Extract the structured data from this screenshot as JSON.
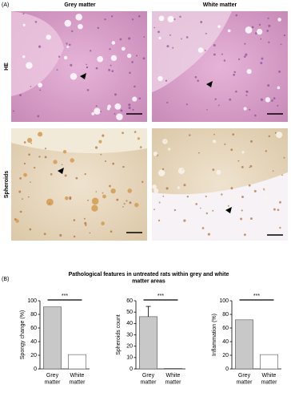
{
  "figure": {
    "panel_a_label": "(A)",
    "columns": [
      "Grey matter",
      "White matter"
    ],
    "rows": [
      "HE",
      "Spheroids"
    ],
    "panel_b_label": "(B)",
    "panel_b_title": "Pathological features in untreated rats within grey and white matter areas"
  },
  "chart_data": [
    {
      "type": "bar",
      "ylabel": "Spongy change (%)",
      "categories": [
        "Grey matter",
        "White matter"
      ],
      "values": [
        91,
        21
      ],
      "colors": [
        "#c8c8c8",
        "#ffffff"
      ],
      "ylim": [
        0,
        100
      ],
      "yticks": [
        0,
        20,
        40,
        60,
        80,
        100
      ],
      "annotation": "***"
    },
    {
      "type": "bar",
      "ylabel": "Spheroids count",
      "categories": [
        "Grey matter",
        "White matter"
      ],
      "values": [
        46,
        0.5
      ],
      "errors": [
        9,
        null
      ],
      "colors": [
        "#c8c8c8",
        "#ffffff"
      ],
      "ylim": [
        0,
        60
      ],
      "yticks": [
        0,
        10,
        20,
        30,
        40,
        50,
        60
      ],
      "annotation": "***"
    },
    {
      "type": "bar",
      "ylabel": "Inflammation (%)",
      "categories": [
        "Grey matter",
        "White matter"
      ],
      "values": [
        72,
        21
      ],
      "colors": [
        "#c8c8c8",
        "#ffffff"
      ],
      "ylim": [
        0,
        100
      ],
      "yticks": [
        0,
        20,
        40,
        60,
        80,
        100
      ],
      "annotation": "***"
    }
  ]
}
